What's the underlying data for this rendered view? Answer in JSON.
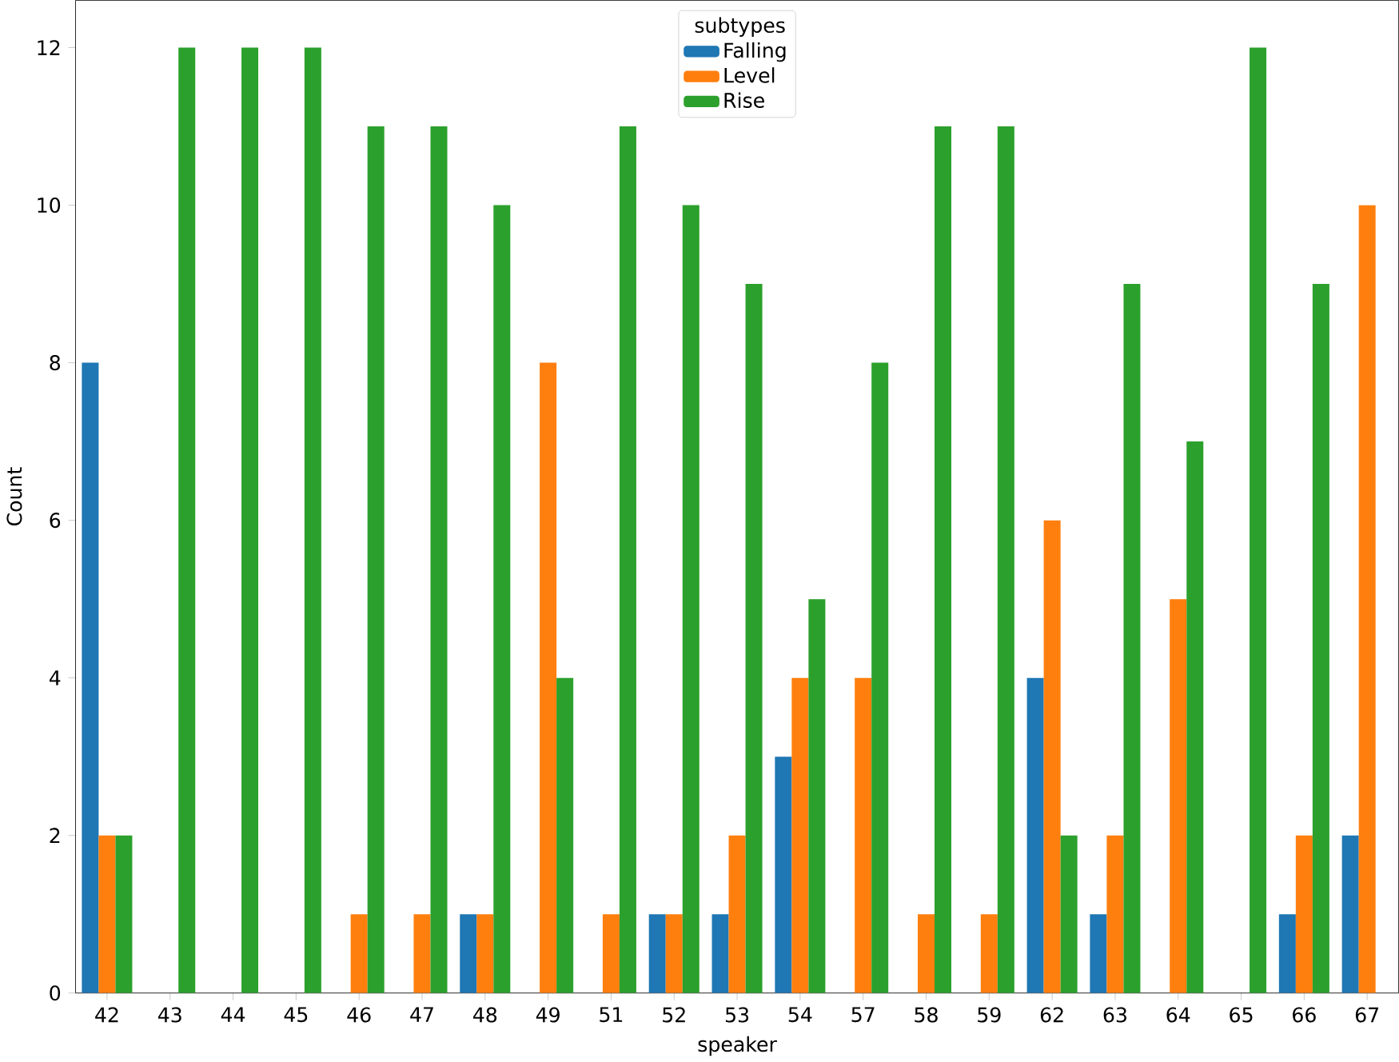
{
  "chart_data": {
    "type": "bar",
    "xlabel": "speaker",
    "ylabel": "Count",
    "legend_title": "subtypes",
    "legend": "top",
    "grid": false,
    "categories": [
      "42",
      "43",
      "44",
      "45",
      "46",
      "47",
      "48",
      "49",
      "51",
      "52",
      "53",
      "54",
      "57",
      "58",
      "59",
      "62",
      "63",
      "64",
      "65",
      "66",
      "67"
    ],
    "ylim": [
      0,
      12.6
    ],
    "yticks": [
      0,
      2,
      4,
      6,
      8,
      10,
      12
    ],
    "series": [
      {
        "name": "Falling",
        "color": "#1f77b4",
        "values": [
          8,
          0,
          0,
          0,
          0,
          0,
          1,
          0,
          0,
          1,
          1,
          3,
          0,
          0,
          0,
          4,
          1,
          0,
          0,
          1,
          2
        ]
      },
      {
        "name": "Level",
        "color": "#ff7f0e",
        "values": [
          2,
          0,
          0,
          0,
          1,
          1,
          1,
          8,
          1,
          1,
          2,
          4,
          4,
          1,
          1,
          6,
          2,
          5,
          0,
          2,
          10
        ]
      },
      {
        "name": "Rise",
        "color": "#2ca02c",
        "values": [
          2,
          12,
          12,
          12,
          11,
          11,
          10,
          4,
          11,
          10,
          9,
          5,
          8,
          11,
          11,
          2,
          9,
          7,
          12,
          9,
          0
        ]
      }
    ]
  }
}
